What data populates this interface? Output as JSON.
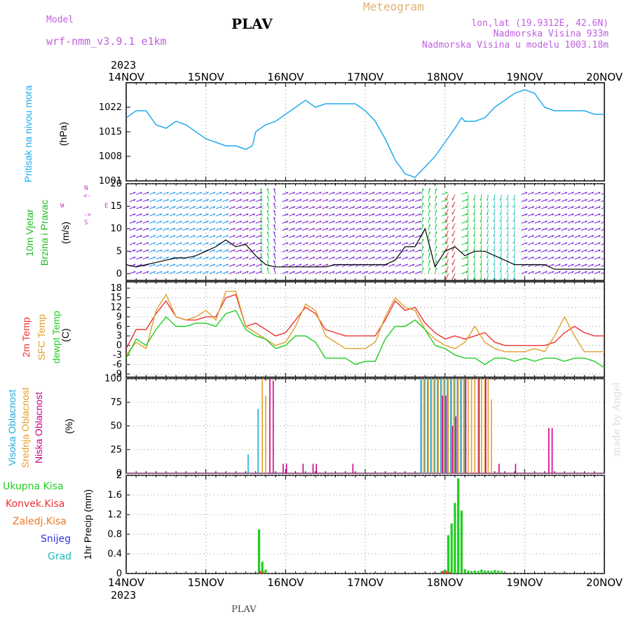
{
  "header": {
    "model_label": "Model",
    "model_name": "wrf-nmm_v3.9.1 e1km",
    "station": "PLAV",
    "product": "Meteogram",
    "lonlat": "lon,lat (19.9312E, 42.6N)",
    "elevation": "Nadmorska Visina 933m",
    "model_elevation": "Nadmorska Visina u modelu 1003.18m",
    "year_top": "2023",
    "year_bottom": "2023",
    "footer_station": "PLAV",
    "watermark": "made by Angel"
  },
  "colors": {
    "pressure": "#22aaee",
    "wind_label": "#22bb22",
    "temp2m": "#ee3333",
    "sfc": "#e0a030",
    "dewpt": "#22cc22",
    "cloud_high": "#22aadd",
    "cloud_mid": "#e0a030",
    "cloud_low": "#cc0088",
    "rain_total": "#22cc22",
    "rain_conv": "#ee3333",
    "rain_frz": "#ee7722",
    "snow": "#3333dd",
    "hail": "#22bbbb"
  },
  "panel_labels": {
    "pressure": [
      "Pritisak na nivou mora"
    ],
    "pressure_unit": "(hPa)",
    "wind": [
      "10m Vjetar",
      "Brzina i Pravac"
    ],
    "wind_unit": "(m/s)",
    "wind_dirs": {
      "n": "N",
      "s": "S",
      "w": "W",
      "e": "E",
      "arrow_n": "<-",
      "arrow_s": "->"
    },
    "temp": [
      "2m Temp",
      "SFC Temp",
      "dewpt Temp"
    ],
    "temp_unit": "(C)",
    "cloud": [
      "Visoka Oblacnost",
      "Srednja Oblacnost",
      "Niska Oblacnost"
    ],
    "cloud_unit": "(%)",
    "precip_legend": [
      "Ukupna Kisa",
      "Konvek.Kisa",
      "Zaledj.Kisa",
      "Snijeg",
      "Grad"
    ],
    "precip_unit": "1hr Precip (mm)"
  },
  "chart_data": [
    {
      "type": "line",
      "title": "Pritisak na nivou mora",
      "ylabel": "(hPa)",
      "x_ticks": [
        "14NOV",
        "15NOV",
        "16NOV",
        "17NOV",
        "18NOV",
        "19NOV",
        "20NOV"
      ],
      "ylim": [
        1001,
        1029
      ],
      "yticks": [
        1001,
        1008,
        1015,
        1022
      ],
      "x_unit": "hours since 14NOV 00UTC",
      "series": [
        {
          "name": "Pritisak na nivou mora",
          "x": [
            0,
            3,
            6,
            9,
            12,
            15,
            18,
            21,
            24,
            27,
            30,
            33,
            36,
            38,
            39,
            42,
            45,
            48,
            51,
            54,
            57,
            60,
            63,
            66,
            69,
            72,
            75,
            78,
            81,
            84,
            87,
            90,
            93,
            96,
            99,
            101,
            102,
            105,
            108,
            111,
            114,
            117,
            120,
            123,
            126,
            129,
            132,
            135,
            138,
            141,
            144
          ],
          "values": [
            1019,
            1021,
            1021,
            1017,
            1016,
            1018,
            1017,
            1015,
            1013,
            1012,
            1011,
            1011,
            1010,
            1011,
            1015,
            1017,
            1018,
            1020,
            1022,
            1024,
            1022,
            1023,
            1023,
            1023,
            1023,
            1021,
            1018,
            1013,
            1007,
            1003,
            1002,
            1005,
            1008,
            1012,
            1016,
            1019,
            1018,
            1018,
            1019,
            1022,
            1024,
            1026,
            1027,
            1026,
            1022,
            1021,
            1021,
            1021,
            1021,
            1020,
            1020
          ]
        }
      ]
    },
    {
      "type": "line",
      "title": "10m Vjetar Brzina i Pravac",
      "ylabel": "(m/s)",
      "ylim": [
        -1.5,
        20
      ],
      "yticks": [
        0,
        5,
        10,
        15,
        20
      ],
      "series": [
        {
          "name": "speed",
          "x": [
            0,
            3,
            6,
            9,
            12,
            15,
            18,
            21,
            24,
            27,
            30,
            33,
            36,
            39,
            42,
            45,
            48,
            51,
            54,
            57,
            60,
            63,
            66,
            69,
            72,
            75,
            78,
            81,
            84,
            87,
            90,
            93,
            96,
            99,
            102,
            105,
            108,
            111,
            114,
            117,
            120,
            123,
            126,
            129,
            132,
            135,
            138,
            141,
            144
          ],
          "values": [
            2,
            1.5,
            2,
            2.5,
            3,
            3.5,
            3.5,
            4,
            5,
            6,
            7.5,
            6,
            6.5,
            4,
            2,
            1.5,
            1.5,
            1.5,
            1.5,
            1.5,
            1.5,
            2,
            2,
            2,
            2,
            2,
            2,
            3,
            6,
            6,
            10,
            1.5,
            5,
            6,
            4,
            5,
            5,
            4,
            3,
            2,
            2,
            2,
            2,
            1,
            1,
            1,
            1,
            1,
            1
          ]
        }
      ]
    },
    {
      "type": "line",
      "title": "2m Temp / SFC Temp / dewpt Temp",
      "ylabel": "(C)",
      "ylim": [
        -10,
        20
      ],
      "yticks": [
        -9,
        -6,
        -3,
        0,
        3,
        6,
        9,
        12,
        15,
        18
      ],
      "x": [
        0,
        3,
        6,
        9,
        12,
        15,
        18,
        21,
        24,
        27,
        30,
        33,
        36,
        39,
        42,
        45,
        48,
        51,
        54,
        57,
        60,
        63,
        66,
        69,
        72,
        75,
        78,
        81,
        84,
        87,
        90,
        93,
        96,
        99,
        102,
        105,
        108,
        111,
        114,
        117,
        120,
        123,
        126,
        129,
        132,
        135,
        138,
        141,
        144
      ],
      "series": [
        {
          "name": "2m Temp",
          "values": [
            -1,
            5,
            5,
            10,
            14,
            9,
            8,
            8,
            9,
            9,
            15,
            16,
            6,
            7,
            5,
            3,
            4,
            8,
            12,
            10,
            5,
            4,
            3,
            3,
            3,
            3,
            8,
            14,
            11,
            12,
            7,
            4,
            2,
            3,
            2,
            3,
            4,
            1,
            0,
            0,
            0,
            0,
            0,
            1,
            4,
            6,
            4,
            3,
            3
          ]
        },
        {
          "name": "SFC Temp",
          "values": [
            -3,
            1,
            -1,
            11,
            16,
            9,
            8,
            9,
            11,
            8,
            17,
            17,
            6,
            4,
            2,
            0,
            1,
            6,
            13,
            11,
            3,
            1,
            -1,
            -1,
            -1,
            1,
            9,
            15,
            12,
            11,
            5,
            2,
            0,
            -1,
            1,
            6,
            1,
            -1,
            -2,
            -2,
            -2,
            -1,
            -2,
            3,
            9,
            3,
            -2,
            -2,
            -2
          ]
        },
        {
          "name": "dewpt Temp",
          "values": [
            -4,
            2,
            0,
            5,
            9,
            6,
            6,
            7,
            7,
            6,
            10,
            11,
            5,
            3,
            2,
            -1,
            0,
            3,
            3,
            1,
            -4,
            -4,
            -4,
            -6,
            -5,
            -5,
            2,
            6,
            6,
            8,
            5,
            0,
            -1,
            -3,
            -4,
            -4,
            -6,
            -4,
            -4,
            -5,
            -4,
            -5,
            -4,
            -4,
            -5,
            -4,
            -4,
            -5,
            -7
          ]
        }
      ]
    },
    {
      "type": "bar",
      "title": "Visoka / Srednja / Niska Oblacnost",
      "ylabel": "(%)",
      "ylim": [
        0,
        100
      ],
      "yticks": [
        0,
        25,
        50,
        75,
        100
      ],
      "series": [
        {
          "name": "Visoka Oblacnost",
          "x": [
            37,
            40,
            89,
            90,
            91,
            92,
            93,
            94,
            95,
            96,
            97,
            98,
            99,
            100,
            101,
            102
          ],
          "values": [
            20,
            68,
            100,
            100,
            100,
            100,
            100,
            100,
            100,
            100,
            100,
            100,
            100,
            100,
            100,
            100
          ]
        },
        {
          "name": "Srednja Oblacnost",
          "x": [
            41,
            42,
            89,
            90,
            91,
            92,
            93,
            94,
            95,
            96,
            97,
            98,
            99,
            100,
            101,
            102,
            103,
            104,
            105,
            106,
            107,
            108,
            109,
            110
          ],
          "values": [
            100,
            82,
            100,
            100,
            100,
            100,
            100,
            100,
            100,
            100,
            100,
            100,
            100,
            100,
            100,
            100,
            100,
            100,
            100,
            100,
            100,
            100,
            100,
            78
          ]
        },
        {
          "name": "Niska Oblacnost",
          "x": [
            43,
            44,
            47,
            48,
            53,
            56,
            57,
            68,
            95,
            96,
            98,
            99,
            102,
            106,
            108,
            112,
            117,
            127,
            128
          ],
          "values": [
            100,
            98,
            10,
            10,
            10,
            10,
            10,
            10,
            82,
            82,
            50,
            60,
            100,
            100,
            100,
            10,
            10,
            48,
            48
          ]
        }
      ]
    },
    {
      "type": "bar",
      "title": "1hr Precip",
      "ylabel": "1hr Precip (mm)",
      "ylim": [
        0,
        2
      ],
      "yticks": [
        0,
        0.4,
        0.8,
        1.2,
        1.6,
        2
      ],
      "series": [
        {
          "name": "Ukupna Kisa",
          "x": [
            40,
            41,
            42,
            43,
            95,
            96,
            97,
            98,
            99,
            100,
            101,
            102,
            103,
            104,
            105,
            106,
            107,
            108,
            109,
            110,
            111,
            112,
            113
          ],
          "values": [
            0.9,
            0.24,
            0.08,
            0.0,
            0.05,
            0.08,
            0.78,
            1.02,
            1.44,
            1.94,
            1.28,
            0.09,
            0.06,
            0.05,
            0.06,
            0.05,
            0.08,
            0.06,
            0.06,
            0.05,
            0.07,
            0.06,
            0.05
          ]
        },
        {
          "name": "Konvek.Kisa",
          "x": [
            40,
            41,
            95,
            96,
            97
          ],
          "values": [
            0.05,
            0.03,
            0.05,
            0.05,
            0.03
          ]
        },
        {
          "name": "Zaledj.Kisa",
          "x": [],
          "values": []
        },
        {
          "name": "Snijeg",
          "x": [],
          "values": []
        },
        {
          "name": "Grad",
          "x": [],
          "values": []
        }
      ]
    }
  ]
}
